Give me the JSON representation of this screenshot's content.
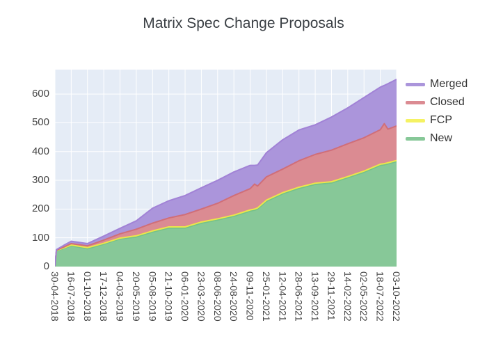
{
  "title": "Matrix Spec Change Proposals",
  "colors": {
    "plot_bg": "#e5ecf6",
    "grid": "#ffffff",
    "text": "#444444",
    "title_text": "#3a3f44"
  },
  "chart_data": {
    "type": "area",
    "stacked": true,
    "title": "Matrix Spec Change Proposals",
    "xlabel": "",
    "ylabel": "",
    "grid": true,
    "legend_position": "top-right",
    "ylim": [
      0,
      685
    ],
    "y_ticks": [
      0,
      100,
      200,
      300,
      400,
      500,
      600
    ],
    "x_tick_labels": [
      "30-04-2018",
      "16-07-2018",
      "01-10-2018",
      "17-12-2018",
      "04-03-2019",
      "20-05-2019",
      "05-08-2019",
      "21-10-2019",
      "06-01-2020",
      "23-03-2020",
      "08-06-2020",
      "24-08-2020",
      "09-11-2020",
      "25-01-2021",
      "12-04-2021",
      "28-06-2021",
      "13-09-2021",
      "29-11-2021",
      "14-02-2022",
      "02-05-2022",
      "18-07-2022",
      "03-10-2022"
    ],
    "dates": [
      "30-04-2018",
      "07-05-2018",
      "11-06-2018",
      "16-07-2018",
      "01-10-2018",
      "17-12-2018",
      "04-03-2019",
      "20-05-2019",
      "05-08-2019",
      "21-10-2019",
      "06-01-2020",
      "23-03-2020",
      "08-06-2020",
      "24-08-2020",
      "09-11-2020",
      "30-11-2020",
      "14-12-2020",
      "25-01-2021",
      "12-04-2021",
      "28-06-2021",
      "13-09-2021",
      "29-11-2021",
      "14-02-2022",
      "02-05-2022",
      "18-07-2022",
      "06-08-2022",
      "23-08-2022",
      "03-10-2022"
    ],
    "series": [
      {
        "name": "Merged",
        "fill": "#ab95db",
        "line": "#a182d6",
        "values": [
          0,
          2,
          6,
          8,
          8,
          14,
          19,
          29,
          52,
          60,
          66,
          74,
          80,
          82,
          81,
          65,
          73,
          84,
          102,
          107,
          103,
          115,
          125,
          140,
          148,
          133,
          158,
          162
        ]
      },
      {
        "name": "Closed",
        "fill": "#db8b92",
        "line": "#d06e78",
        "values": [
          0,
          1,
          3,
          5,
          6,
          11,
          15,
          23,
          27,
          31,
          43,
          45,
          54,
          68,
          74,
          87,
          76,
          81,
          82,
          92,
          100,
          110,
          114,
          116,
          120,
          139,
          117,
          120
        ]
      },
      {
        "name": "FCP",
        "fill": "#f5f263",
        "line": "#ece64a",
        "values": [
          0,
          1,
          2,
          3,
          4,
          3,
          3,
          4,
          4,
          4,
          4,
          4,
          4,
          4,
          4,
          4,
          4,
          4,
          4,
          4,
          4,
          4,
          4,
          4,
          4,
          4,
          4,
          4
        ]
      },
      {
        "name": "New",
        "fill": "#87c898",
        "line": "#74c289",
        "values": [
          2,
          55,
          63,
          72,
          62,
          78,
          96,
          103,
          120,
          134,
          134,
          151,
          162,
          175,
          193,
          196,
          200,
          227,
          253,
          272,
          286,
          291,
          309,
          328,
          352,
          354,
          357,
          365
        ]
      }
    ]
  }
}
